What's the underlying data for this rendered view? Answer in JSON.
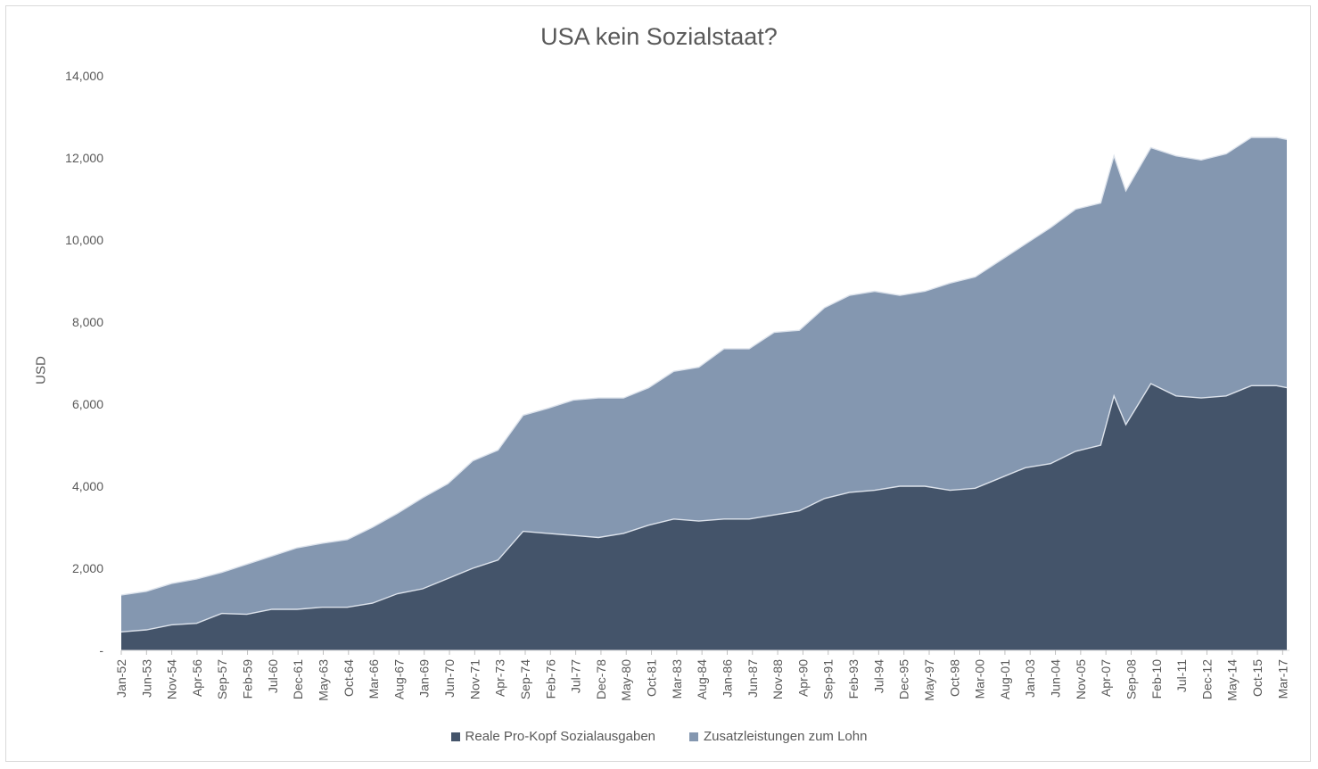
{
  "chart_data": {
    "type": "area",
    "stacked": true,
    "title": "USA kein Sozialstaat?",
    "xlabel": "",
    "ylabel": "USD",
    "ylim": [
      0,
      14000
    ],
    "y_ticks": [
      {
        "value": 0,
        "label": "-"
      },
      {
        "value": 2000,
        "label": "2,000"
      },
      {
        "value": 4000,
        "label": "4,000"
      },
      {
        "value": 6000,
        "label": "6,000"
      },
      {
        "value": 8000,
        "label": "8,000"
      },
      {
        "value": 10000,
        "label": "10,000"
      },
      {
        "value": 12000,
        "label": "12,000"
      },
      {
        "value": 14000,
        "label": "14,000"
      }
    ],
    "x_tick_labels": [
      "Jan-52",
      "Jun-53",
      "Nov-54",
      "Apr-56",
      "Sep-57",
      "Feb-59",
      "Jul-60",
      "Dec-61",
      "May-63",
      "Oct-64",
      "Mar-66",
      "Aug-67",
      "Jan-69",
      "Jun-70",
      "Nov-71",
      "Apr-73",
      "Sep-74",
      "Feb-76",
      "Jul-77",
      "Dec-78",
      "May-80",
      "Oct-81",
      "Mar-83",
      "Aug-84",
      "Jan-86",
      "Jun-87",
      "Nov-88",
      "Apr-90",
      "Sep-91",
      "Feb-93",
      "Jul-94",
      "Dec-95",
      "May-97",
      "Oct-98",
      "Mar-00",
      "Aug-01",
      "Jan-03",
      "Jun-04",
      "Nov-05",
      "Apr-07",
      "Sep-08",
      "Feb-10",
      "Jul-11",
      "Dec-12",
      "May-14",
      "Oct-15",
      "Mar-17"
    ],
    "x": [
      1952.0,
      1953.42,
      1954.83,
      1956.25,
      1957.67,
      1959.08,
      1960.5,
      1961.92,
      1963.33,
      1964.75,
      1966.17,
      1967.58,
      1969.0,
      1970.42,
      1971.83,
      1973.25,
      1974.67,
      1976.08,
      1977.5,
      1978.92,
      1980.33,
      1981.75,
      1983.17,
      1984.58,
      1986.0,
      1987.42,
      1988.83,
      1990.25,
      1991.67,
      1993.08,
      1994.5,
      1995.92,
      1997.33,
      1998.75,
      2000.17,
      2001.58,
      2003.0,
      2004.42,
      2005.83,
      2007.25,
      2008.0,
      2008.67,
      2010.08,
      2011.5,
      2012.92,
      2014.33,
      2015.75,
      2017.17,
      2017.75
    ],
    "series": [
      {
        "name": "Reale Pro-Kopf Sozialausgaben",
        "color": "#44546a",
        "values": [
          450,
          500,
          620,
          660,
          900,
          880,
          1000,
          1000,
          1050,
          1050,
          1150,
          1380,
          1500,
          1750,
          2000,
          2200,
          2900,
          2850,
          2800,
          2750,
          2850,
          3050,
          3200,
          3150,
          3200,
          3200,
          3300,
          3400,
          3700,
          3850,
          3900,
          4000,
          4000,
          3900,
          3950,
          4200,
          4450,
          4550,
          4850,
          5000,
          6200,
          5500,
          6500,
          6200,
          6150,
          6200,
          6450,
          6450,
          6400
        ]
      },
      {
        "name": "Zusatzleistungen zum Lohn",
        "color": "#8497b0",
        "values": [
          900,
          940,
          1010,
          1080,
          1000,
          1220,
          1300,
          1500,
          1560,
          1650,
          1850,
          1960,
          2220,
          2310,
          2620,
          2680,
          2830,
          3050,
          3300,
          3400,
          3300,
          3350,
          3600,
          3750,
          4150,
          4150,
          4450,
          4400,
          4650,
          4800,
          4850,
          4650,
          4750,
          5050,
          5150,
          5300,
          5450,
          5750,
          5900,
          5900,
          5850,
          5700,
          5750,
          5850,
          5800,
          5900,
          6050,
          6050,
          6050
        ]
      }
    ],
    "legend": {
      "position": "bottom"
    },
    "grid": false
  }
}
